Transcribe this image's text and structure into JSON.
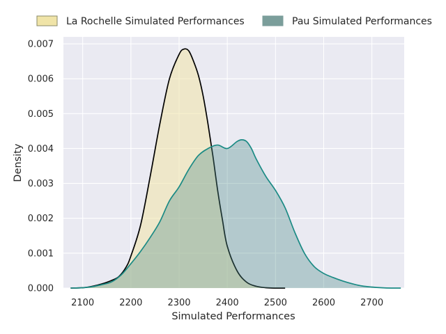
{
  "chart_data": {
    "type": "area",
    "title": "",
    "xlabel": "Simulated Performances",
    "ylabel": "Density",
    "xlim": [
      2060,
      2767
    ],
    "ylim": [
      0,
      0.0072
    ],
    "xticks": [
      2100,
      2200,
      2300,
      2400,
      2500,
      2600,
      2700
    ],
    "yticks": [
      0.0,
      0.001,
      0.002,
      0.003,
      0.004,
      0.005,
      0.006,
      0.007
    ],
    "ytick_labels": [
      "0.000",
      "0.001",
      "0.002",
      "0.003",
      "0.004",
      "0.005",
      "0.006",
      "0.007"
    ],
    "grid": true,
    "legend_position": "top",
    "series": [
      {
        "name": "La Rochelle Simulated Performances",
        "fill": "#f0e4a8",
        "line": "#000000",
        "x": [
          2075,
          2100,
          2120,
          2140,
          2160,
          2175,
          2190,
          2200,
          2220,
          2240,
          2260,
          2280,
          2300,
          2310,
          2320,
          2330,
          2340,
          2350,
          2360,
          2370,
          2380,
          2390,
          2400,
          2420,
          2440,
          2460,
          2480,
          2500,
          2520
        ],
        "y": [
          0,
          1e-05,
          5e-05,
          0.00012,
          0.00022,
          0.00033,
          0.0006,
          0.00092,
          0.0018,
          0.0032,
          0.0047,
          0.006,
          0.0067,
          0.00685,
          0.0068,
          0.0065,
          0.0061,
          0.0055,
          0.0047,
          0.0038,
          0.0028,
          0.00195,
          0.0012,
          0.0005,
          0.00017,
          5e-05,
          1e-05,
          0,
          0
        ]
      },
      {
        "name": "Pau Simulated Performances",
        "fill": "#4c8c8a",
        "line": "#1a8a84",
        "x": [
          2075,
          2100,
          2120,
          2140,
          2160,
          2180,
          2200,
          2220,
          2240,
          2260,
          2280,
          2300,
          2320,
          2340,
          2360,
          2380,
          2400,
          2420,
          2430,
          2440,
          2450,
          2460,
          2480,
          2500,
          2520,
          2540,
          2560,
          2580,
          2600,
          2620,
          2640,
          2660,
          2680,
          2700,
          2720,
          2740,
          2760
        ],
        "y": [
          0,
          1e-05,
          4e-05,
          0.0001,
          0.00018,
          0.00038,
          0.0007,
          0.00105,
          0.00145,
          0.0019,
          0.0025,
          0.0029,
          0.0034,
          0.0038,
          0.004,
          0.0041,
          0.004,
          0.0042,
          0.00425,
          0.0042,
          0.004,
          0.0037,
          0.0032,
          0.0028,
          0.0023,
          0.0016,
          0.001,
          0.00062,
          0.00042,
          0.0003,
          0.0002,
          0.00012,
          6e-05,
          3e-05,
          1e-05,
          0,
          0
        ]
      }
    ]
  }
}
